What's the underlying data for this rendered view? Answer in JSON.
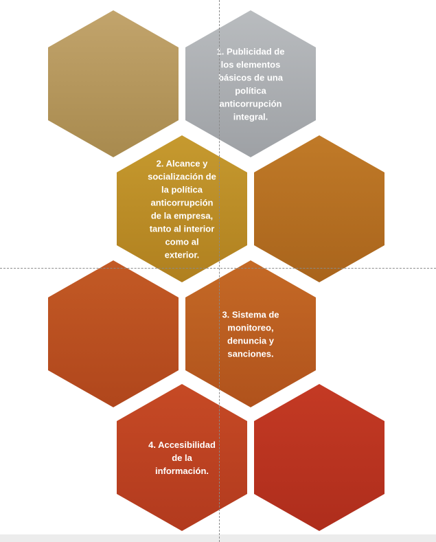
{
  "diagram": {
    "hexagons": [
      {
        "id": "hex-1",
        "label_lines": [],
        "color_top": "#c2a46c",
        "color_bottom": "#a88a4e"
      },
      {
        "id": "hex-2",
        "label_lines": [
          "1. Publicidad de",
          "los elementos",
          "básicos de una",
          "política",
          "anticorrupción",
          "integral."
        ],
        "color_top": "#b9bcbf",
        "color_bottom": "#9ea1a5"
      },
      {
        "id": "hex-3",
        "label_lines": [
          "2. Alcance y",
          "socialización de",
          "la política",
          "anticorrupción",
          "de la empresa,",
          "tanto al interior",
          "como al",
          "exterior."
        ],
        "color_top": "#c69a2f",
        "color_bottom": "#b0801f"
      },
      {
        "id": "hex-4",
        "label_lines": [],
        "color_top": "#c07a28",
        "color_bottom": "#a9641c"
      },
      {
        "id": "hex-5",
        "label_lines": [],
        "color_top": "#c35a25",
        "color_bottom": "#b0461c"
      },
      {
        "id": "hex-6",
        "label_lines": [
          "3. Sistema de",
          "monitoreo,",
          "denuncia y",
          "sanciones."
        ],
        "color_top": "#c56a26",
        "color_bottom": "#b0521c"
      },
      {
        "id": "hex-7",
        "label_lines": [
          "4. Accesibilidad",
          "de la",
          "información."
        ],
        "color_top": "#c64a25",
        "color_bottom": "#b23a1e"
      },
      {
        "id": "hex-8",
        "label_lines": [],
        "color_top": "#c43a24",
        "color_bottom": "#ae2d1c"
      }
    ]
  }
}
